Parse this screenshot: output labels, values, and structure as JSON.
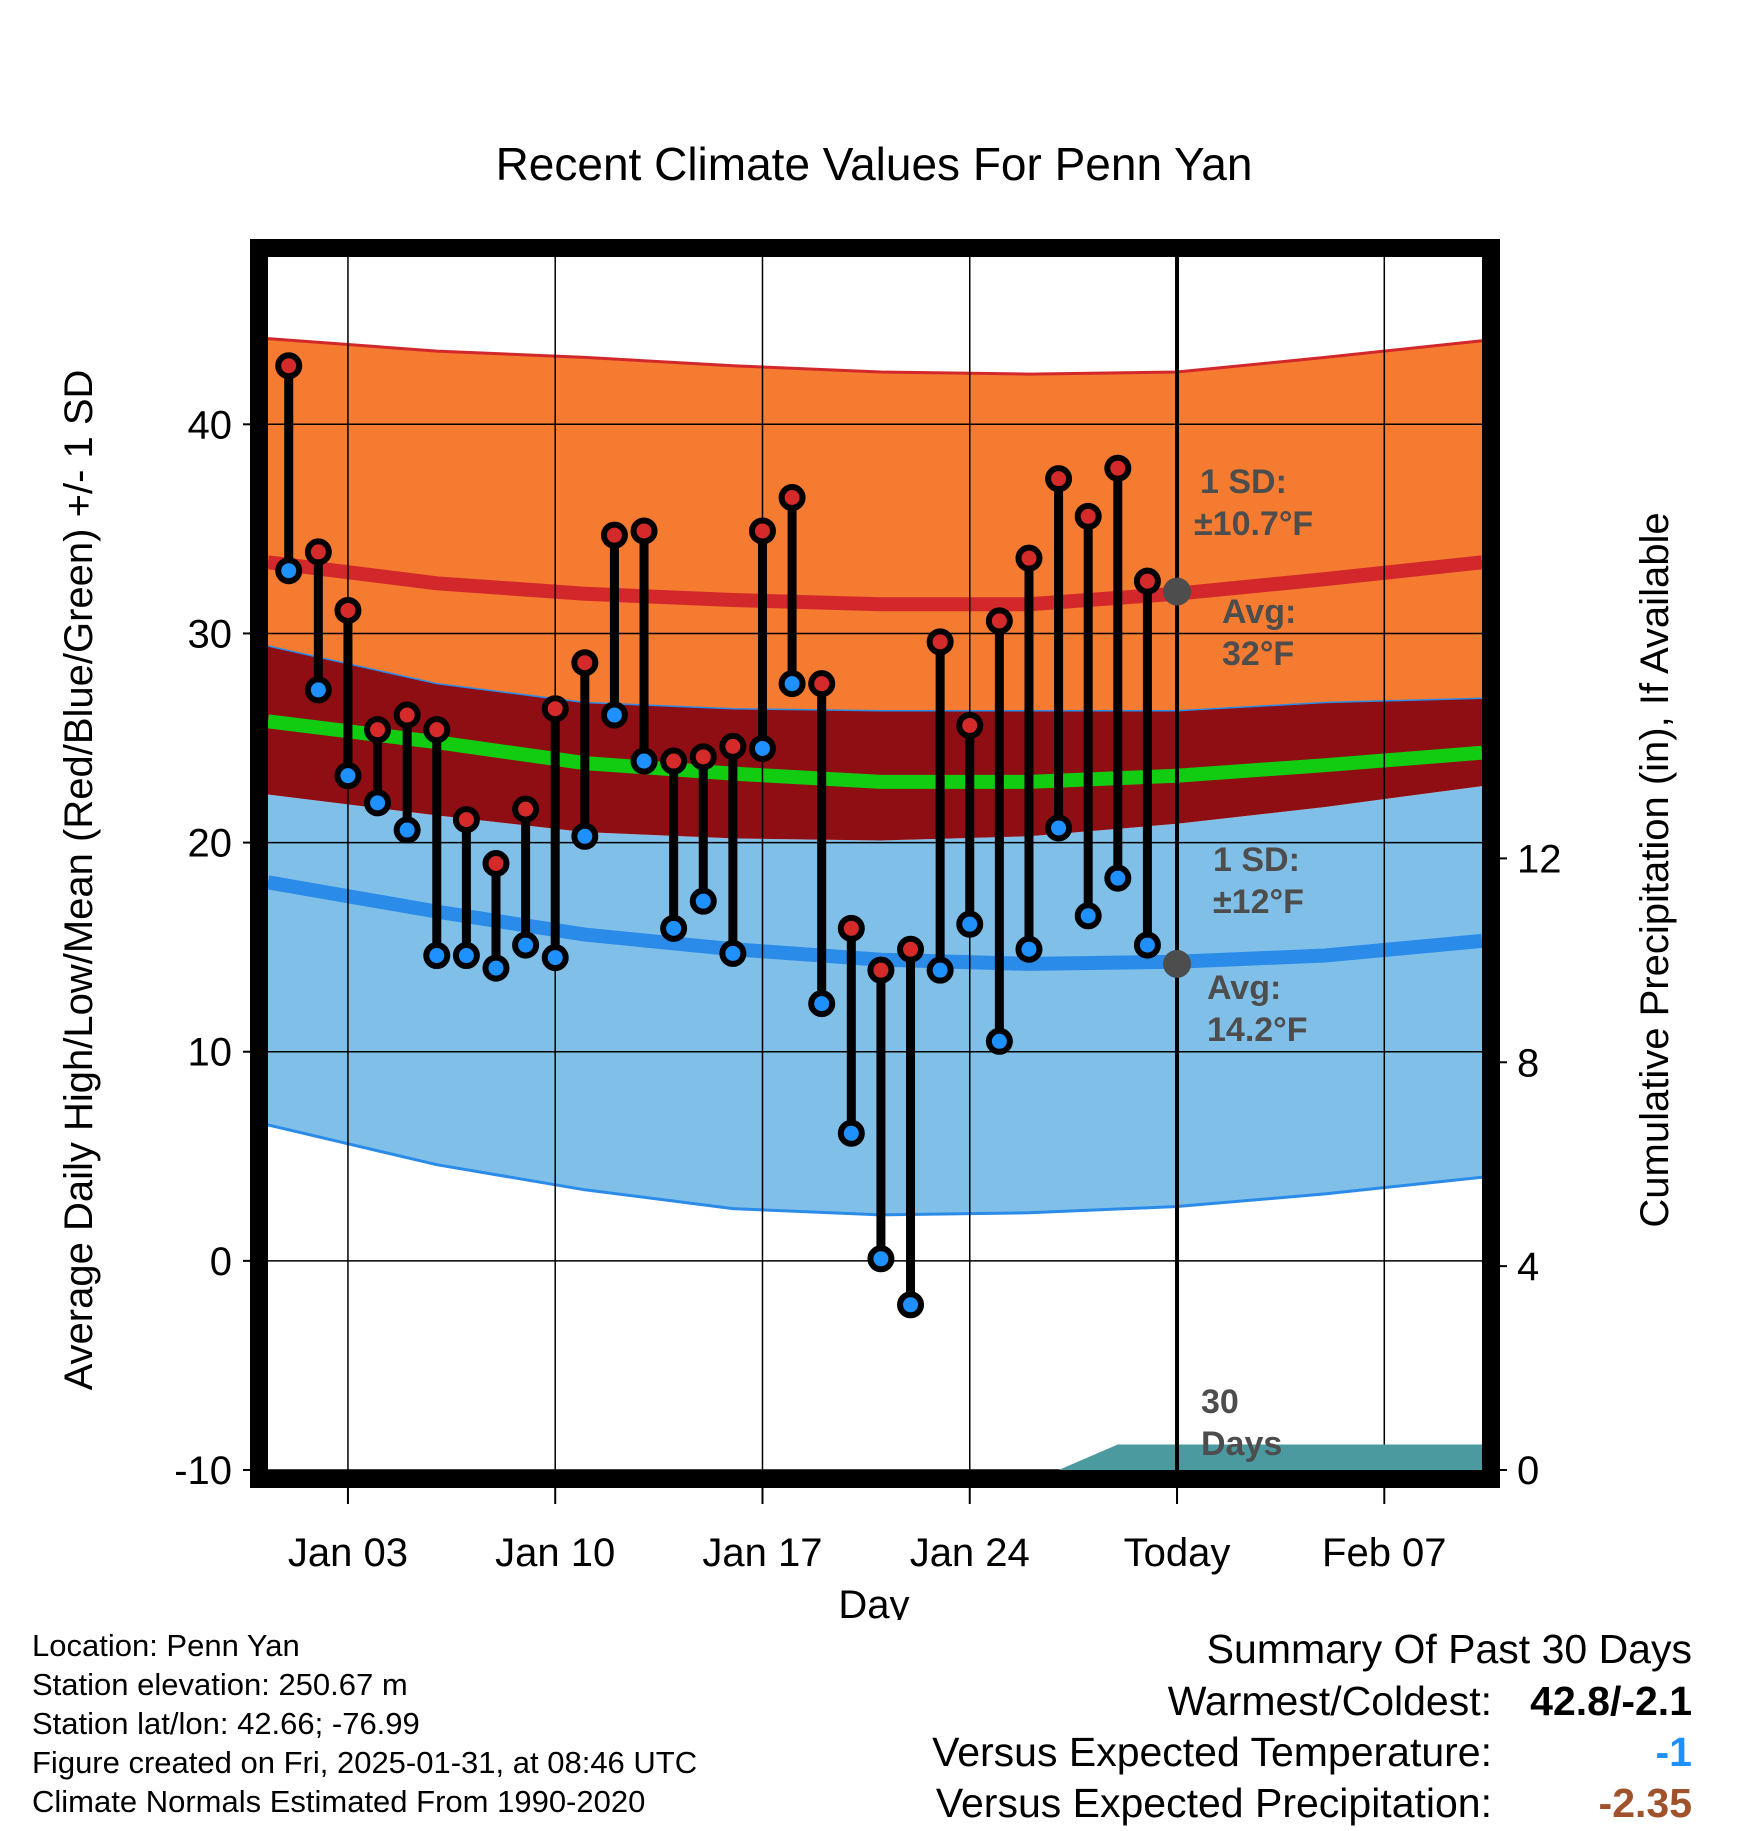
{
  "title": "Recent Climate Values For Penn Yan",
  "colors": {
    "high_band": "#f47b30",
    "high_band_edge": "#d3282b",
    "mean_band": "#8e0e13",
    "mean_line": "#11cc11",
    "low_band": "#80c0e8",
    "low_band_edge": "#2b8be8",
    "high_dot": "#d42a2a",
    "low_dot": "#1e90ff",
    "avg_marker": "#4d4d4d",
    "precip_fill": "#4a9aa0",
    "temp_vs_expected": "#1e90ff",
    "precip_vs_expected": "#a0522d"
  },
  "chart_data": {
    "type": "line",
    "xlabel": "Day",
    "ylabel": "Average Daily High/Low/Mean (Red/Blue/Green) +/- 1 SD",
    "ylabel_right": "Cumulative Precipitation (in), If Available",
    "x_range": [
      -2.7,
      38.3
    ],
    "ylim": [
      -10,
      48
    ],
    "ylim_right": [
      0,
      23.8
    ],
    "x_ticks": [
      {
        "x": 0,
        "label": "Jan 03"
      },
      {
        "x": 7,
        "label": "Jan 10"
      },
      {
        "x": 14,
        "label": "Jan 17"
      },
      {
        "x": 21,
        "label": "Jan 24"
      },
      {
        "x": 28,
        "label": "Today"
      },
      {
        "x": 35,
        "label": "Feb 07"
      }
    ],
    "y_ticks": [
      -10,
      0,
      10,
      20,
      30,
      40
    ],
    "y_ticks_right": [
      0,
      4,
      8,
      12
    ],
    "today_x": 28,
    "day_x": [
      -2,
      -1,
      0,
      1,
      2,
      3,
      4,
      5,
      6,
      7,
      8,
      9,
      10,
      11,
      12,
      13,
      14,
      15,
      16,
      17,
      18,
      19,
      20,
      21,
      22,
      23,
      24,
      25,
      26,
      27
    ],
    "daily_high": [
      42.8,
      33.9,
      31.1,
      25.4,
      26.1,
      25.4,
      21.1,
      19.0,
      21.6,
      26.4,
      28.6,
      34.7,
      34.9,
      23.9,
      24.1,
      24.6,
      34.9,
      36.5,
      27.6,
      15.9,
      13.9,
      14.9,
      29.6,
      25.6,
      30.6,
      33.6,
      37.4,
      35.6,
      37.9,
      32.5
    ],
    "daily_low": [
      33.0,
      27.3,
      23.2,
      21.9,
      20.6,
      14.6,
      14.6,
      14.0,
      15.1,
      14.5,
      20.3,
      26.1,
      23.9,
      15.9,
      17.2,
      14.7,
      24.5,
      27.6,
      12.3,
      6.1,
      0.1,
      -2.1,
      13.9,
      16.1,
      10.5,
      14.9,
      20.7,
      16.5,
      18.3,
      15.1
    ],
    "normal_days": [
      -2.7,
      3,
      8,
      13,
      18,
      23,
      28,
      33,
      38.3
    ],
    "normal_high_avg": [
      33.4,
      32.4,
      31.9,
      31.6,
      31.4,
      31.4,
      31.9,
      32.6,
      33.4
    ],
    "normal_high_upper": [
      44.1,
      43.5,
      43.2,
      42.8,
      42.5,
      42.4,
      42.5,
      43.2,
      44.0
    ],
    "normal_high_lower": [
      29.4,
      27.6,
      26.7,
      26.4,
      26.3,
      26.3,
      26.3,
      26.7,
      26.9
    ],
    "normal_mean": [
      25.8,
      24.8,
      23.8,
      23.3,
      22.9,
      22.9,
      23.2,
      23.7,
      24.3
    ],
    "normal_low_avg": [
      18.1,
      16.7,
      15.6,
      14.9,
      14.4,
      14.2,
      14.3,
      14.6,
      15.3
    ],
    "normal_low_upper": [
      22.3,
      21.3,
      20.5,
      20.2,
      20.1,
      20.3,
      20.9,
      21.7,
      22.7
    ],
    "normal_low_lower": [
      6.5,
      4.6,
      3.4,
      2.5,
      2.2,
      2.3,
      2.6,
      3.2,
      4.0
    ],
    "precip_days": [
      24,
      26,
      28,
      30,
      32,
      34,
      36,
      38.3
    ],
    "precip_cumulative": [
      0,
      0.5,
      0.5,
      0.5,
      0.5,
      0.5,
      0.5,
      0.5
    ],
    "annotations": {
      "high_sd_line1": "1 SD:",
      "high_sd_line2": "±10.7°F",
      "high_avg_line1": "Avg:",
      "high_avg_line2": "32°F",
      "low_sd_line1": "1 SD:",
      "low_sd_line2": "±12°F",
      "low_avg_line1": "Avg:",
      "low_avg_line2": "14.2°F",
      "days_line1": "30",
      "days_line2": "Days"
    },
    "high_avg_marker": 32.0,
    "low_avg_marker": 14.2
  },
  "info": {
    "location": "Location: Penn Yan",
    "elevation": "Station elevation: 250.67 m",
    "latlon": "Station lat/lon: 42.66; -76.99",
    "created": "Figure created on Fri, 2025-01-31, at 08:46 UTC",
    "normals": "Climate Normals Estimated From 1990-2020"
  },
  "summary": {
    "heading": "Summary Of Past 30 Days",
    "warmest_coldest_label": "Warmest/Coldest:",
    "warmest_coldest_value": "42.8/-2.1",
    "temp_label": "Versus Expected Temperature:",
    "temp_value": "-1",
    "precip_label": "Versus Expected Precipitation:",
    "precip_value": "-2.35"
  }
}
